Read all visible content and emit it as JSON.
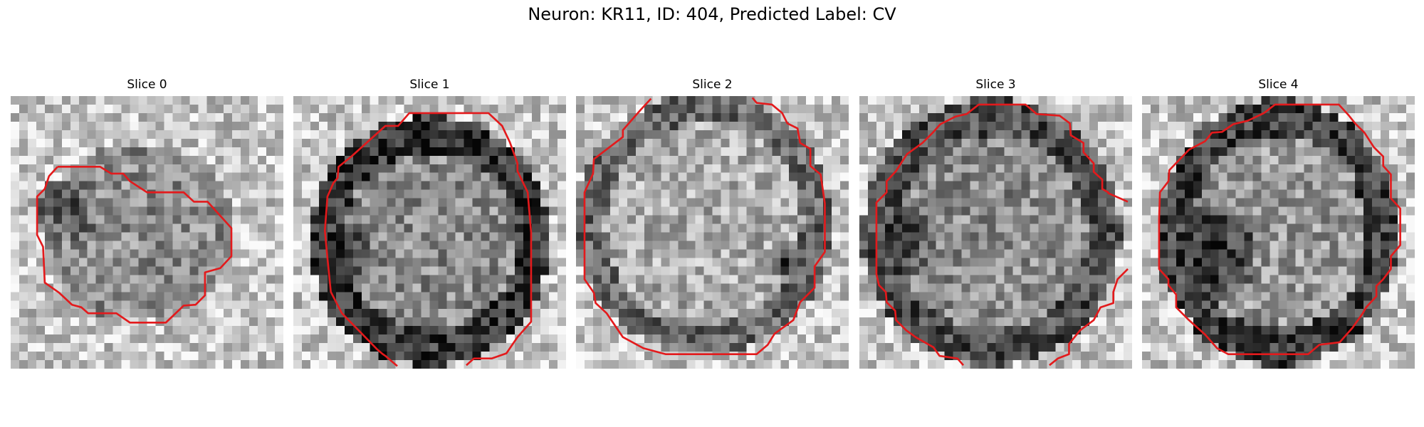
{
  "figure": {
    "title": "Neuron: KR11, ID: 404, Predicted Label: CV"
  },
  "slices": [
    {
      "title": "Slice 0",
      "seed": 11,
      "cell": "small"
    },
    {
      "title": "Slice 1",
      "seed": 23,
      "cell": "large-dark-rim"
    },
    {
      "title": "Slice 2",
      "seed": 37,
      "cell": "bright-interior"
    },
    {
      "title": "Slice 3",
      "seed": 51,
      "cell": "textured"
    },
    {
      "title": "Slice 4",
      "seed": 67,
      "cell": "dark-left"
    }
  ],
  "colors": {
    "background": "#ffffff",
    "contour": "#e31a1c",
    "colormap": "gray"
  }
}
